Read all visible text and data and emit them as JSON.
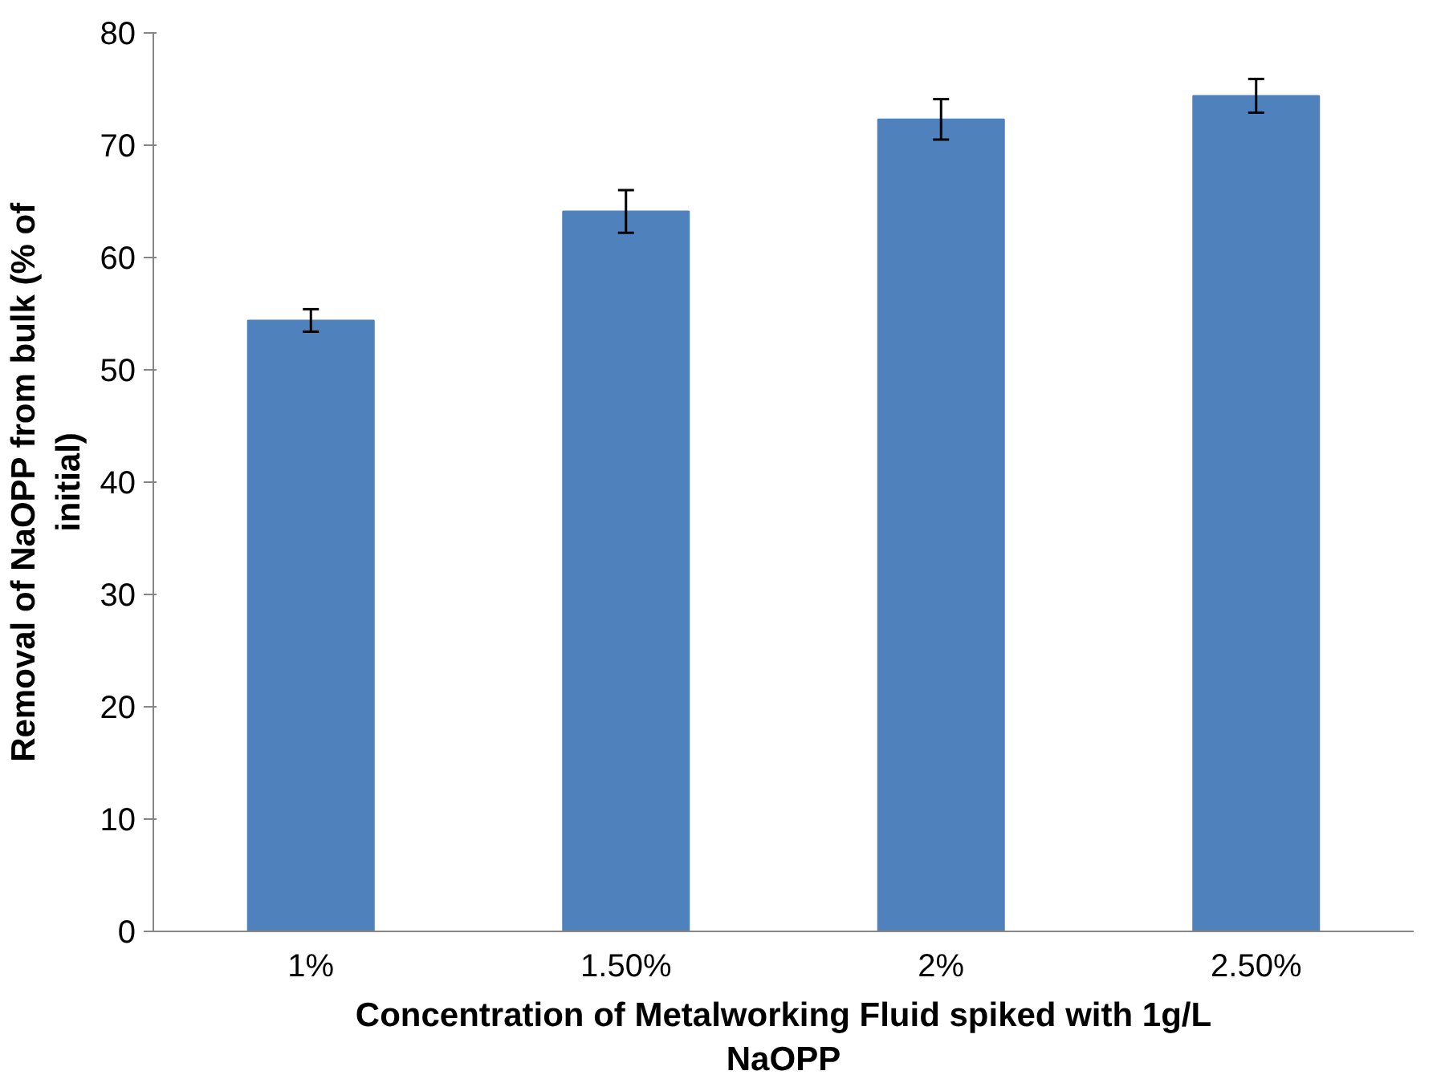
{
  "chart_data": {
    "type": "bar",
    "xlabel": "Concentration of Metalworking Fluid spiked with 1g/L NaOPP",
    "ylabel": "Removal of NaOPP from bulk (% of initial)",
    "categories": [
      "1%",
      "1.50%",
      "2%",
      "2.50%"
    ],
    "values": [
      54.4,
      64.1,
      72.3,
      74.4
    ],
    "errors": [
      1.0,
      1.9,
      1.8,
      1.5
    ],
    "color": "#4f81bd",
    "ylim": [
      0,
      80
    ],
    "yticks": [
      0,
      10,
      20,
      30,
      40,
      50,
      60,
      70,
      80
    ],
    "grid": false
  }
}
